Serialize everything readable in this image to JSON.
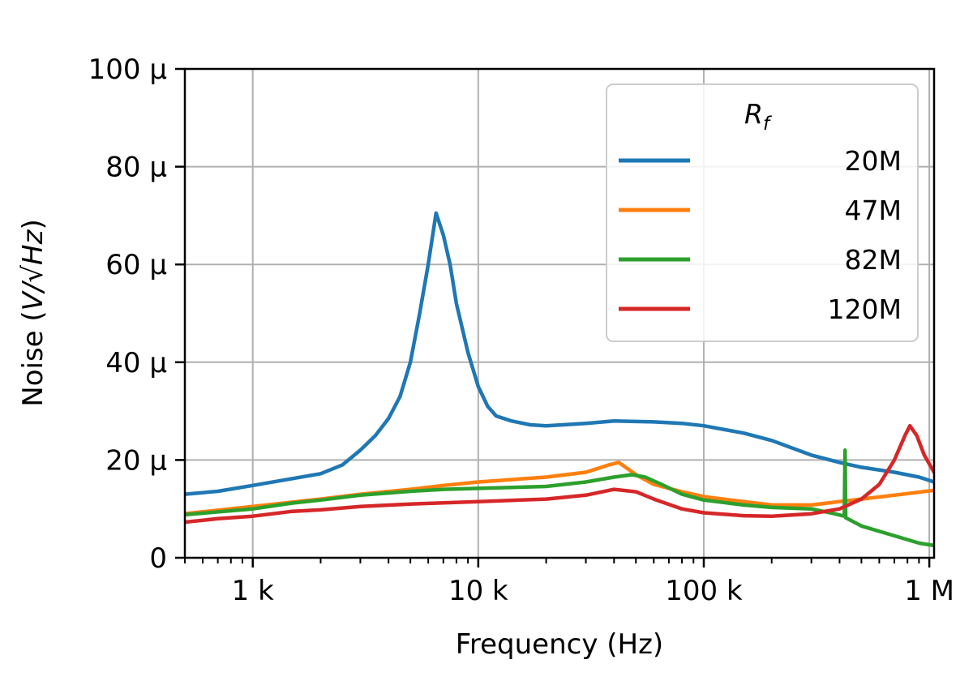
{
  "chart_data": {
    "type": "line",
    "title": "",
    "xlabel": "Frequency (Hz)",
    "ylabel_prefix": "Noise (",
    "ylabel_math": "V/√Hz",
    "ylabel_suffix": ")",
    "x_scale": "log",
    "xlim": [
      500,
      1050000
    ],
    "ylim": [
      0,
      100
    ],
    "grid": true,
    "x_ticks": [
      {
        "value": 1000,
        "label": "1 k"
      },
      {
        "value": 10000,
        "label": "10 k"
      },
      {
        "value": 100000,
        "label": "100 k"
      },
      {
        "value": 1000000,
        "label": "1 M"
      }
    ],
    "y_ticks": [
      {
        "value": 0,
        "label": "0"
      },
      {
        "value": 20,
        "label": "20 μ"
      },
      {
        "value": 40,
        "label": "40 μ"
      },
      {
        "value": 60,
        "label": "60 μ"
      },
      {
        "value": 80,
        "label": "80 μ"
      },
      {
        "value": 100,
        "label": "100 μ"
      }
    ],
    "legend": {
      "title_main": "R",
      "title_sub": "f",
      "placement": "top-right"
    },
    "series": [
      {
        "name": "20M",
        "color": "#1f77b4",
        "points": [
          [
            500,
            13
          ],
          [
            700,
            13.6
          ],
          [
            1000,
            14.8
          ],
          [
            1500,
            16.2
          ],
          [
            2000,
            17.2
          ],
          [
            2500,
            19
          ],
          [
            3000,
            22
          ],
          [
            3500,
            25
          ],
          [
            4000,
            28.5
          ],
          [
            4500,
            33
          ],
          [
            5000,
            40
          ],
          [
            5500,
            50
          ],
          [
            6000,
            60
          ],
          [
            6500,
            70.5
          ],
          [
            7000,
            66
          ],
          [
            7500,
            60
          ],
          [
            8000,
            52
          ],
          [
            9000,
            42
          ],
          [
            10000,
            35
          ],
          [
            11000,
            31
          ],
          [
            12000,
            29
          ],
          [
            14000,
            28
          ],
          [
            17000,
            27.2
          ],
          [
            20000,
            27
          ],
          [
            30000,
            27.5
          ],
          [
            40000,
            28
          ],
          [
            60000,
            27.8
          ],
          [
            80000,
            27.5
          ],
          [
            100000,
            27
          ],
          [
            150000,
            25.5
          ],
          [
            200000,
            24
          ],
          [
            300000,
            21
          ],
          [
            400000,
            19.5
          ],
          [
            500000,
            18.5
          ],
          [
            700000,
            17.5
          ],
          [
            900000,
            16.5
          ],
          [
            1050000,
            15.5
          ]
        ]
      },
      {
        "name": "47M",
        "color": "#ff7f0e",
        "points": [
          [
            500,
            9
          ],
          [
            1000,
            10.5
          ],
          [
            2000,
            12
          ],
          [
            3000,
            13
          ],
          [
            5000,
            14
          ],
          [
            7000,
            14.8
          ],
          [
            10000,
            15.5
          ],
          [
            20000,
            16.5
          ],
          [
            30000,
            17.5
          ],
          [
            38000,
            19
          ],
          [
            42000,
            19.5
          ],
          [
            50000,
            17
          ],
          [
            60000,
            15
          ],
          [
            80000,
            13.5
          ],
          [
            100000,
            12.5
          ],
          [
            150000,
            11.5
          ],
          [
            200000,
            10.8
          ],
          [
            300000,
            10.8
          ],
          [
            400000,
            11.5
          ],
          [
            500000,
            12
          ],
          [
            700000,
            12.8
          ],
          [
            1050000,
            13.8
          ]
        ]
      },
      {
        "name": "82M",
        "color": "#2ca02c",
        "points": [
          [
            500,
            8.8
          ],
          [
            1000,
            10
          ],
          [
            1500,
            11.2
          ],
          [
            2000,
            11.8
          ],
          [
            3000,
            12.8
          ],
          [
            5000,
            13.6
          ],
          [
            7000,
            14
          ],
          [
            10000,
            14.2
          ],
          [
            20000,
            14.6
          ],
          [
            30000,
            15.5
          ],
          [
            40000,
            16.5
          ],
          [
            48000,
            17
          ],
          [
            55000,
            16.5
          ],
          [
            65000,
            15
          ],
          [
            80000,
            13
          ],
          [
            100000,
            11.8
          ],
          [
            150000,
            10.8
          ],
          [
            200000,
            10.3
          ],
          [
            300000,
            10
          ],
          [
            380000,
            9
          ],
          [
            420000,
            8.5
          ],
          [
            423000,
            22
          ],
          [
            426000,
            8.2
          ],
          [
            500000,
            6.5
          ],
          [
            700000,
            4.5
          ],
          [
            900000,
            3
          ],
          [
            1050000,
            2.5
          ]
        ]
      },
      {
        "name": "120M",
        "color": "#d62728",
        "points": [
          [
            500,
            7.3
          ],
          [
            700,
            8
          ],
          [
            1000,
            8.5
          ],
          [
            1500,
            9.5
          ],
          [
            2000,
            9.8
          ],
          [
            3000,
            10.5
          ],
          [
            5000,
            11
          ],
          [
            10000,
            11.5
          ],
          [
            20000,
            12
          ],
          [
            30000,
            12.8
          ],
          [
            40000,
            14
          ],
          [
            50000,
            13.5
          ],
          [
            60000,
            12
          ],
          [
            80000,
            10
          ],
          [
            100000,
            9.2
          ],
          [
            150000,
            8.6
          ],
          [
            200000,
            8.5
          ],
          [
            300000,
            9
          ],
          [
            400000,
            10
          ],
          [
            500000,
            12
          ],
          [
            600000,
            15
          ],
          [
            700000,
            20
          ],
          [
            780000,
            25
          ],
          [
            820000,
            27
          ],
          [
            880000,
            25
          ],
          [
            950000,
            21
          ],
          [
            1050000,
            17.5
          ]
        ]
      }
    ]
  }
}
